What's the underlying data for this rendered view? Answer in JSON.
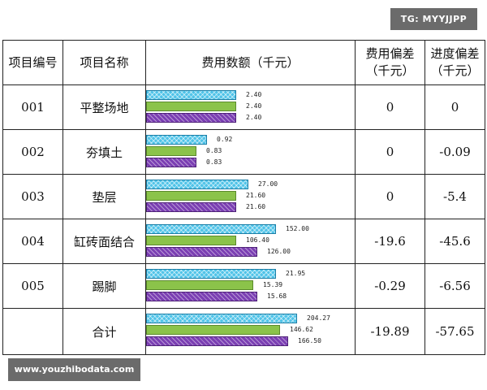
{
  "watermarks": {
    "top_right": "TG: MYYJJPP",
    "bottom_left": "www.youzhibodata.com"
  },
  "headers": {
    "code": "项目编号",
    "name": "项目名称",
    "amount": "费用数额（千元）",
    "cost_dev_line1": "费用偏差",
    "cost_dev_line2": "（千元）",
    "sched_dev_line1": "进度偏差",
    "sched_dev_line2": "（千元）"
  },
  "rows": [
    {
      "code": "001",
      "name": "平整场地",
      "values": [
        "2.40",
        "2.40",
        "2.40"
      ],
      "cost_dev": "0",
      "sched_dev": "0"
    },
    {
      "code": "002",
      "name": "夯填土",
      "values": [
        "0.92",
        "0.83",
        "0.83"
      ],
      "cost_dev": "0",
      "sched_dev": "-0.09"
    },
    {
      "code": "003",
      "name": "垫层",
      "values": [
        "27.00",
        "21.60",
        "21.60"
      ],
      "cost_dev": "0",
      "sched_dev": "-5.4"
    },
    {
      "code": "004",
      "name": "缸砖面结合",
      "values": [
        "152.00",
        "106.40",
        "126.00"
      ],
      "cost_dev": "-19.6",
      "sched_dev": "-45.6"
    },
    {
      "code": "005",
      "name": "踢脚",
      "values": [
        "21.95",
        "15.39",
        "15.68"
      ],
      "cost_dev": "-0.29",
      "sched_dev": "-6.56"
    },
    {
      "code": "",
      "name": "合计",
      "values": [
        "204.27",
        "146.62",
        "166.50"
      ],
      "cost_dev": "-19.89",
      "sched_dev": "-57.65"
    }
  ],
  "bar_levels": [
    [
      0.43,
      0.43,
      0.43
    ],
    [
      0.29,
      0.24,
      0.24
    ],
    [
      0.49,
      0.43,
      0.43
    ],
    [
      0.62,
      0.43,
      0.53
    ],
    [
      0.62,
      0.51,
      0.53
    ],
    [
      0.72,
      0.64,
      0.68
    ]
  ],
  "colors": {
    "budget": "#4fc3e8",
    "plan": "#8bc34a",
    "actual": "#7b3fb3"
  }
}
